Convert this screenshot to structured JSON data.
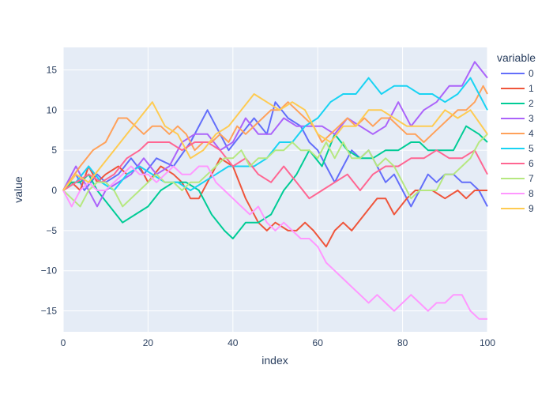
{
  "chart_data": {
    "type": "line",
    "xlabel": "index",
    "ylabel": "value",
    "xlim": [
      0,
      100
    ],
    "ylim": [
      -17.6,
      17.8
    ],
    "xticks": [
      0,
      20,
      40,
      60,
      80,
      100
    ],
    "yticks": [
      -15,
      -10,
      -5,
      0,
      5,
      10,
      15
    ],
    "grid": true,
    "legend": {
      "title": "variable",
      "placement": "right"
    },
    "series": [
      {
        "name": "0",
        "color": "#636efa",
        "x": [
          0,
          3,
          5,
          8,
          10,
          13,
          16,
          19,
          22,
          26,
          30,
          34,
          36,
          39,
          42,
          45,
          48,
          50,
          53,
          56,
          58,
          60,
          62,
          64,
          66,
          68,
          70,
          72,
          74,
          76,
          78,
          80,
          82,
          84,
          86,
          88,
          90,
          92,
          94,
          96,
          98,
          100
        ],
        "y": [
          0,
          2,
          0,
          2,
          1,
          2,
          4,
          2,
          4,
          3,
          6,
          10,
          8,
          5,
          7,
          9,
          7,
          11,
          9,
          8,
          6,
          5,
          3,
          1,
          3,
          5,
          4,
          5,
          3,
          1,
          2,
          0,
          -2,
          0,
          2,
          1,
          2,
          2,
          1,
          1,
          0,
          -2
        ]
      },
      {
        "name": "1",
        "color": "#ef553b",
        "x": [
          0,
          2,
          4,
          6,
          8,
          10,
          13,
          15,
          18,
          20,
          23,
          26,
          28,
          30,
          32,
          34,
          37,
          40,
          43,
          46,
          48,
          50,
          53,
          55,
          57,
          59,
          62,
          64,
          66,
          68,
          71,
          74,
          76,
          78,
          81,
          83,
          85,
          87,
          90,
          93,
          95,
          97,
          100
        ],
        "y": [
          0,
          1,
          0,
          3,
          1,
          2,
          3,
          2,
          3,
          1,
          3,
          2,
          1,
          -1,
          -1,
          1,
          4,
          3,
          -1,
          -4,
          -5,
          -4,
          -5,
          -5,
          -4,
          -5,
          -7,
          -5,
          -4,
          -5,
          -3,
          -1,
          -1,
          -3,
          -1,
          0,
          0,
          0,
          -1,
          0,
          -1,
          0,
          0
        ]
      },
      {
        "name": "2",
        "color": "#00cc96",
        "x": [
          0,
          2,
          4,
          6,
          8,
          11,
          14,
          17,
          20,
          23,
          26,
          29,
          32,
          35,
          38,
          40,
          43,
          46,
          49,
          52,
          55,
          58,
          61,
          64,
          67,
          70,
          73,
          76,
          79,
          82,
          84,
          86,
          89,
          92,
          95,
          98,
          100
        ],
        "y": [
          0,
          1,
          1,
          2,
          0,
          -2,
          -4,
          -3,
          -2,
          0,
          1,
          1,
          0,
          -3,
          -5,
          -6,
          -4,
          -4,
          -3,
          0,
          2,
          5,
          3,
          7,
          5,
          4,
          4,
          5,
          5,
          6,
          6,
          5,
          5,
          5,
          8,
          7,
          6
        ]
      },
      {
        "name": "3",
        "color": "#ab63fa",
        "x": [
          0,
          3,
          5,
          8,
          10,
          13,
          16,
          19,
          22,
          25,
          28,
          31,
          34,
          37,
          40,
          43,
          46,
          49,
          52,
          55,
          58,
          61,
          64,
          67,
          70,
          73,
          76,
          79,
          82,
          85,
          88,
          91,
          94,
          97,
          100
        ],
        "y": [
          0,
          3,
          1,
          -2,
          0,
          1,
          2,
          4,
          2,
          3,
          6,
          7,
          7,
          5,
          6,
          9,
          7,
          7,
          9,
          8,
          8,
          8,
          7,
          9,
          8,
          7,
          8,
          11,
          8,
          10,
          11,
          13,
          13,
          16,
          14
        ]
      },
      {
        "name": "4",
        "color": "#ffa15a",
        "x": [
          0,
          4,
          7,
          10,
          13,
          15,
          17,
          19,
          21,
          23,
          25,
          27,
          29,
          31,
          33,
          35,
          37,
          39,
          41,
          43,
          45,
          47,
          49,
          51,
          53,
          55,
          57,
          59,
          61,
          63,
          65,
          67,
          69,
          71,
          73,
          75,
          77,
          79,
          81,
          83,
          85,
          87,
          89,
          91,
          93,
          95,
          97,
          99,
          100
        ],
        "y": [
          0,
          3,
          5,
          6,
          9,
          9,
          8,
          7,
          8,
          8,
          7,
          8,
          7,
          5,
          6,
          6,
          7,
          6,
          8,
          7,
          8,
          9,
          10,
          10,
          11,
          10,
          9,
          8,
          6,
          7,
          8,
          9,
          8,
          9,
          8,
          9,
          9,
          8,
          7,
          7,
          6,
          7,
          8,
          9,
          10,
          10,
          11,
          13,
          12
        ]
      },
      {
        "name": "5",
        "color": "#19d3f3",
        "x": [
          0,
          3,
          6,
          9,
          12,
          15,
          18,
          21,
          24,
          27,
          30,
          33,
          36,
          39,
          42,
          45,
          48,
          51,
          54,
          57,
          60,
          63,
          66,
          69,
          72,
          75,
          78,
          81,
          84,
          87,
          90,
          93,
          96,
          98,
          100
        ],
        "y": [
          0,
          1,
          3,
          1,
          0,
          2,
          3,
          2,
          1,
          1,
          0,
          1,
          2,
          3,
          3,
          3,
          4,
          6,
          6,
          8,
          9,
          11,
          12,
          12,
          14,
          12,
          13,
          13,
          12,
          12,
          11,
          12,
          14,
          12,
          10
        ]
      },
      {
        "name": "6",
        "color": "#ff6692",
        "x": [
          0,
          3,
          6,
          9,
          12,
          15,
          18,
          20,
          22,
          25,
          28,
          31,
          34,
          37,
          40,
          43,
          46,
          49,
          52,
          55,
          58,
          61,
          64,
          67,
          70,
          73,
          76,
          79,
          82,
          85,
          88,
          91,
          94,
          97,
          100
        ],
        "y": [
          0,
          1,
          2,
          1,
          2,
          4,
          5,
          6,
          6,
          6,
          5,
          6,
          6,
          5,
          3,
          4,
          2,
          1,
          3,
          1,
          -1,
          0,
          1,
          2,
          0,
          2,
          3,
          3,
          4,
          4,
          5,
          4,
          4,
          5,
          2
        ]
      },
      {
        "name": "7",
        "color": "#b6e880",
        "x": [
          0,
          2,
          4,
          6,
          8,
          10,
          12,
          14,
          16,
          18,
          20,
          22,
          24,
          26,
          28,
          30,
          32,
          34,
          36,
          38,
          40,
          42,
          44,
          46,
          48,
          50,
          52,
          54,
          56,
          58,
          60,
          62,
          64,
          66,
          68,
          70,
          72,
          74,
          76,
          78,
          80,
          82,
          84,
          86,
          88,
          90,
          92,
          94,
          96,
          98,
          100
        ],
        "y": [
          0,
          -1,
          -2,
          0,
          1,
          1,
          0,
          -2,
          -1,
          0,
          1,
          2,
          1,
          1,
          0,
          1,
          1,
          2,
          3,
          4,
          4,
          5,
          3,
          4,
          4,
          5,
          5,
          6,
          5,
          5,
          4,
          6,
          4,
          6,
          4,
          4,
          5,
          3,
          4,
          3,
          1,
          -1,
          0,
          0,
          0,
          2,
          2,
          3,
          4,
          6,
          7
        ]
      },
      {
        "name": "8",
        "color": "#ff97ff",
        "x": [
          0,
          2,
          4,
          6,
          8,
          10,
          12,
          14,
          16,
          18,
          20,
          22,
          24,
          26,
          28,
          30,
          32,
          34,
          36,
          38,
          40,
          42,
          44,
          46,
          48,
          50,
          52,
          54,
          56,
          58,
          60,
          62,
          64,
          66,
          68,
          70,
          72,
          74,
          76,
          78,
          80,
          82,
          84,
          86,
          88,
          90,
          92,
          94,
          96,
          98,
          100
        ],
        "y": [
          0,
          -2,
          0,
          1,
          0,
          0,
          1,
          2,
          3,
          2,
          2,
          1,
          2,
          3,
          2,
          2,
          3,
          3,
          1,
          0,
          -1,
          -2,
          -3,
          -2,
          -4,
          -5,
          -4,
          -5,
          -6,
          -6,
          -7,
          -9,
          -10,
          -11,
          -12,
          -13,
          -14,
          -13,
          -14,
          -15,
          -14,
          -13,
          -14,
          -15,
          -14,
          -14,
          -13,
          -13,
          -15,
          -16,
          -16
        ]
      },
      {
        "name": "9",
        "color": "#fecb52",
        "x": [
          0,
          3,
          6,
          9,
          12,
          15,
          18,
          21,
          24,
          27,
          30,
          33,
          36,
          39,
          42,
          45,
          48,
          51,
          54,
          57,
          60,
          63,
          66,
          69,
          72,
          75,
          78,
          81,
          84,
          87,
          90,
          93,
          96,
          100
        ],
        "y": [
          0,
          2,
          1,
          3,
          5,
          7,
          9,
          11,
          8,
          7,
          4,
          5,
          7,
          8,
          10,
          12,
          11,
          10,
          11,
          10,
          7,
          6,
          8,
          8,
          10,
          10,
          9,
          8,
          8,
          8,
          10,
          9,
          10,
          7
        ]
      }
    ]
  }
}
